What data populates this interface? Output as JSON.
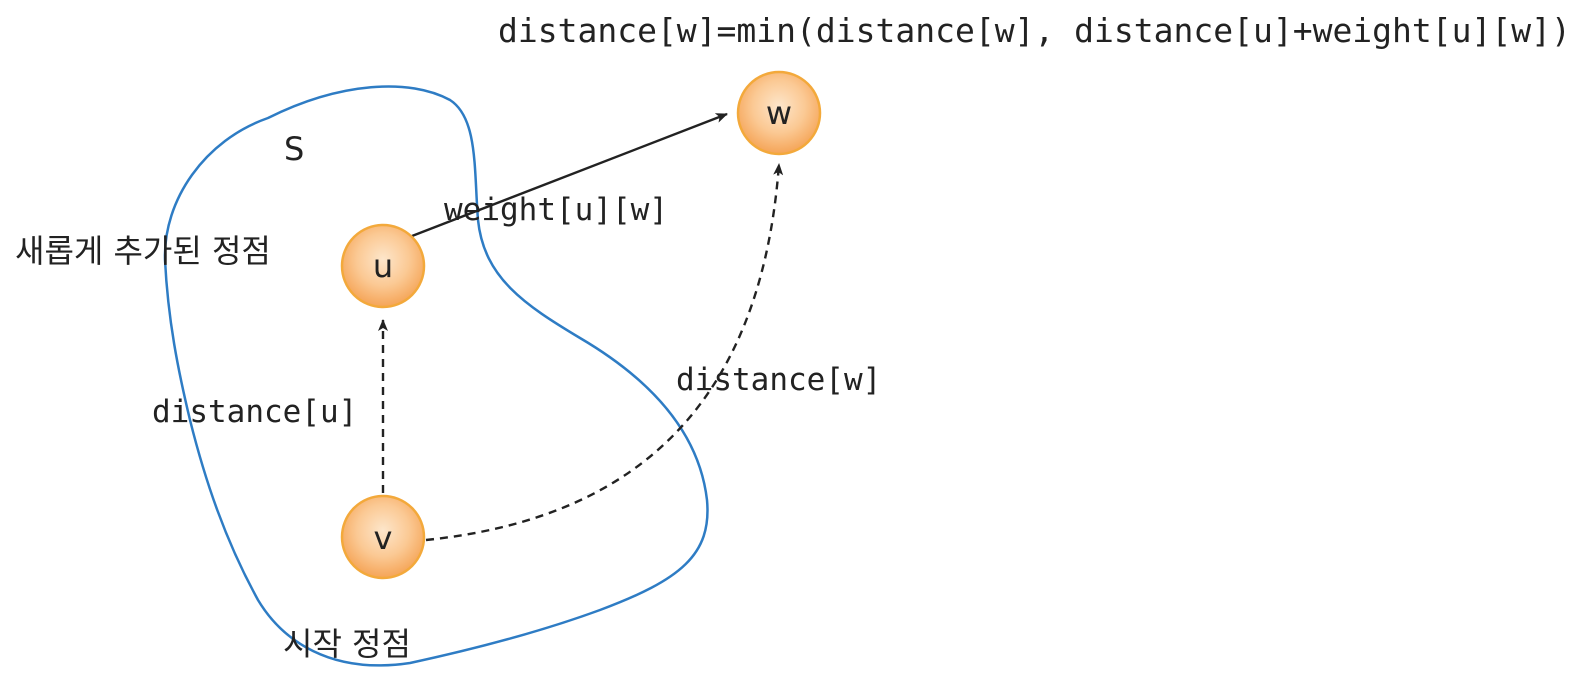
{
  "formula": "distance[w]=min(distance[w], distance[u]+weight[u][w])",
  "set_label": "S",
  "nodes": {
    "u": {
      "label": "u",
      "caption": "새롭게 추가된 정점"
    },
    "v": {
      "label": "v",
      "caption": "시작 정점"
    },
    "w": {
      "label": "w"
    }
  },
  "edges": {
    "u_w": {
      "label": "weight[u][w]",
      "style": "solid"
    },
    "v_u": {
      "label": "distance[u]",
      "style": "dashed"
    },
    "v_w": {
      "label": "distance[w]",
      "style": "dashed"
    }
  },
  "colors": {
    "set_outline": "#2e7cc4",
    "node_fill_center": "#fde3c4",
    "node_fill_edge": "#f6a95a",
    "node_stroke": "#f3a93b",
    "edge": "#222222"
  }
}
